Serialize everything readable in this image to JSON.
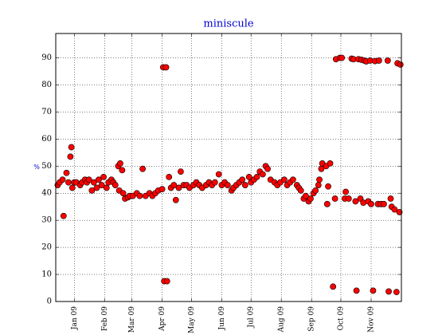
{
  "chart_data": {
    "type": "scatter",
    "title": "miniscule",
    "y_label": "%",
    "color": "#ff0000",
    "edge_color": "#000000",
    "label_color": "#0000cc",
    "grid": true,
    "xlim": [
      "2008-12-13",
      "2009-12-02"
    ],
    "ylim": [
      0,
      99
    ],
    "yticks": [
      0,
      10,
      20,
      30,
      40,
      50,
      60,
      70,
      80,
      90
    ],
    "xticks": [
      {
        "value": "2009-01-01",
        "label": "Jan 09"
      },
      {
        "value": "2009-02-01",
        "label": "Feb 09"
      },
      {
        "value": "2009-03-01",
        "label": "Mar 09"
      },
      {
        "value": "2009-04-01",
        "label": "Apr 09"
      },
      {
        "value": "2009-05-01",
        "label": "May 09"
      },
      {
        "value": "2009-06-01",
        "label": "Jun 09"
      },
      {
        "value": "2009-07-01",
        "label": "Jul 09"
      },
      {
        "value": "2009-08-01",
        "label": "Aug 09"
      },
      {
        "value": "2009-09-01",
        "label": "Sep 09"
      },
      {
        "value": "2009-10-01",
        "label": "Oct 09"
      },
      {
        "value": "2009-11-01",
        "label": "Nov 09"
      }
    ],
    "x": [
      "2008-12-15",
      "2008-12-17",
      "2008-12-20",
      "2008-12-21",
      "2008-12-24",
      "2008-12-26",
      "2008-12-28",
      "2008-12-29",
      "2008-12-30",
      "2009-01-01",
      "2009-01-03",
      "2009-01-07",
      "2009-01-09",
      "2009-01-12",
      "2009-01-14",
      "2009-01-16",
      "2009-01-19",
      "2009-01-21",
      "2009-01-24",
      "2009-01-26",
      "2009-01-29",
      "2009-01-31",
      "2009-02-03",
      "2009-02-05",
      "2009-02-08",
      "2009-02-10",
      "2009-02-12",
      "2009-02-15",
      "2009-02-16",
      "2009-02-17",
      "2009-02-19",
      "2009-02-20",
      "2009-02-22",
      "2009-02-25",
      "2009-02-27",
      "2009-03-02",
      "2009-03-06",
      "2009-03-09",
      "2009-03-12",
      "2009-03-15",
      "2009-03-19",
      "2009-03-22",
      "2009-03-25",
      "2009-03-28",
      "2009-04-01",
      "2009-04-02",
      "2009-04-03",
      "2009-04-05",
      "2009-04-06",
      "2009-04-08",
      "2009-04-10",
      "2009-04-13",
      "2009-04-15",
      "2009-04-18",
      "2009-04-20",
      "2009-04-23",
      "2009-04-26",
      "2009-04-29",
      "2009-05-03",
      "2009-05-06",
      "2009-05-09",
      "2009-05-12",
      "2009-05-16",
      "2009-05-19",
      "2009-05-22",
      "2009-05-25",
      "2009-05-29",
      "2009-06-01",
      "2009-06-04",
      "2009-06-07",
      "2009-06-11",
      "2009-06-13",
      "2009-06-16",
      "2009-06-19",
      "2009-06-22",
      "2009-06-25",
      "2009-06-29",
      "2009-07-01",
      "2009-07-04",
      "2009-07-07",
      "2009-07-10",
      "2009-07-13",
      "2009-07-16",
      "2009-07-18",
      "2009-07-21",
      "2009-07-25",
      "2009-07-28",
      "2009-07-31",
      "2009-08-04",
      "2009-08-07",
      "2009-08-10",
      "2009-08-13",
      "2009-08-17",
      "2009-08-19",
      "2009-08-21",
      "2009-08-24",
      "2009-08-26",
      "2009-08-29",
      "2009-08-31",
      "2009-09-03",
      "2009-09-05",
      "2009-09-08",
      "2009-09-09",
      "2009-09-11",
      "2009-09-12",
      "2009-09-16",
      "2009-09-17",
      "2009-09-18",
      "2009-09-20",
      "2009-09-23",
      "2009-09-25",
      "2009-09-26",
      "2009-09-30",
      "2009-10-02",
      "2009-10-05",
      "2009-10-06",
      "2009-10-09",
      "2009-10-12",
      "2009-10-14",
      "2009-10-16",
      "2009-10-17",
      "2009-10-19",
      "2009-10-21",
      "2009-10-22",
      "2009-10-24",
      "2009-10-25",
      "2009-10-27",
      "2009-10-29",
      "2009-10-31",
      "2009-11-01",
      "2009-11-03",
      "2009-11-05",
      "2009-11-08",
      "2009-11-09",
      "2009-11-11",
      "2009-11-14",
      "2009-11-18",
      "2009-11-19",
      "2009-11-21",
      "2009-11-22",
      "2009-11-25",
      "2009-11-27",
      "2009-11-28",
      "2009-11-30",
      "2009-12-01"
    ],
    "values": [
      43,
      44,
      45,
      31.6,
      47.5,
      44,
      53.5,
      57,
      42,
      44,
      44,
      43,
      44,
      45,
      44,
      45,
      41,
      44,
      42,
      45,
      43,
      46,
      42,
      44,
      45,
      44,
      43,
      50,
      41,
      51,
      48.5,
      40,
      38,
      38.5,
      39,
      39,
      40,
      39,
      49,
      39,
      40,
      39,
      40,
      41,
      41.5,
      86.5,
      7.5,
      86.5,
      7.5,
      46,
      42,
      43,
      37.5,
      42,
      48,
      43,
      43,
      42,
      43,
      44,
      43,
      42,
      43,
      44,
      43,
      44,
      47,
      43,
      44,
      43,
      41,
      42,
      43,
      44,
      45,
      43,
      46,
      44,
      45,
      46,
      48,
      47,
      50,
      49,
      45,
      44,
      43,
      44,
      45,
      43,
      44,
      45,
      43,
      42,
      41,
      38,
      39,
      37,
      38,
      40,
      41,
      43,
      45,
      49,
      51,
      50,
      36,
      42.5,
      51,
      5.5,
      38,
      89.5,
      90,
      90,
      38,
      40.5,
      38,
      89.7,
      89.5,
      37,
      4,
      89.5,
      38,
      89.3,
      36.5,
      89,
      88.7,
      37,
      89,
      36,
      4,
      88.8,
      36,
      89,
      36,
      36,
      89,
      3.7,
      38,
      35,
      34,
      3.5,
      88,
      33,
      87.5
    ]
  }
}
